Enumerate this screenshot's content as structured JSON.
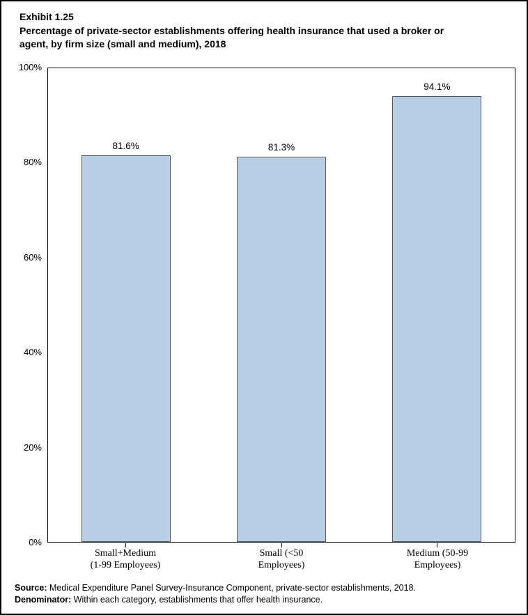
{
  "figure": {
    "exhibit_label": "Exhibit 1.25",
    "title": "Percentage of private-sector establishments offering health insurance that used a broker or\nagent, by firm size (small and medium), 2018"
  },
  "chart_data": {
    "type": "bar",
    "title": "Percentage of private-sector establishments offering health insurance that used a broker or agent, by firm size (small and medium), 2018",
    "categories": [
      "Small+Medium\n(1-99 Employees)",
      "Small (<50\nEmployees)",
      "Medium (50-99\nEmployees)"
    ],
    "values": [
      81.6,
      81.3,
      94.1
    ],
    "value_labels": [
      "81.6%",
      "81.3%",
      "94.1%"
    ],
    "xlabel": "",
    "ylabel": "",
    "ylim": [
      0,
      100
    ],
    "yticks": [
      {
        "value": 0,
        "label": "0%"
      },
      {
        "value": 20,
        "label": "20%"
      },
      {
        "value": 40,
        "label": "40%"
      },
      {
        "value": 60,
        "label": "60%"
      },
      {
        "value": 80,
        "label": "80%"
      },
      {
        "value": 100,
        "label": "100%"
      }
    ],
    "grid": false,
    "legend_position": "none",
    "bar_fill_color": "#B8CDE6",
    "bar_border_color": "#595959"
  },
  "footer": {
    "source_label": "Source:",
    "source_text": " Medical Expenditure Panel Survey-Insurance Component, private-sector establishments, 2018.",
    "denominator_label": "Denominator:",
    "denominator_text": " Within each category, establishments that offer health insurance."
  }
}
